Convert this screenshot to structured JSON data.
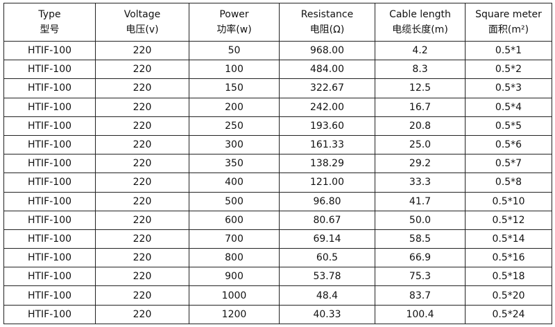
{
  "table": {
    "headers": [
      [
        "Type",
        "型号"
      ],
      [
        "Voltage",
        "电压(v)"
      ],
      [
        "Power",
        "功率(w)"
      ],
      [
        "Resistance",
        "电阻(Ω)"
      ],
      [
        "Cable length",
        "电缆长度(m)"
      ],
      [
        "Square meter",
        "面积(m²)"
      ]
    ],
    "rows": [
      [
        "HTIF-100",
        "220",
        "50",
        "968.00",
        "4.2",
        "0.5*1"
      ],
      [
        "HTIF-100",
        "220",
        "100",
        "484.00",
        "8.3",
        "0.5*2"
      ],
      [
        "HTIF-100",
        "220",
        "150",
        "322.67",
        "12.5",
        "0.5*3"
      ],
      [
        "HTIF-100",
        "220",
        "200",
        "242.00",
        "16.7",
        "0.5*4"
      ],
      [
        "HTIF-100",
        "220",
        "250",
        "193.60",
        "20.8",
        "0.5*5"
      ],
      [
        "HTIF-100",
        "220",
        "300",
        "161.33",
        "25.0",
        "0.5*6"
      ],
      [
        "HTIF-100",
        "220",
        "350",
        "138.29",
        "29.2",
        "0.5*7"
      ],
      [
        "HTIF-100",
        "220",
        "400",
        "121.00",
        "33.3",
        "0.5*8"
      ],
      [
        "HTIF-100",
        "220",
        "500",
        "96.80",
        "41.7",
        "0.5*10"
      ],
      [
        "HTIF-100",
        "220",
        "600",
        "80.67",
        "50.0",
        "0.5*12"
      ],
      [
        "HTIF-100",
        "220",
        "700",
        "69.14",
        "58.5",
        "0.5*14"
      ],
      [
        "HTIF-100",
        "220",
        "800",
        "60.5",
        "66.9",
        "0.5*16"
      ],
      [
        "HTIF-100",
        "220",
        "900",
        "53.78",
        "75.3",
        "0.5*18"
      ],
      [
        "HTIF-100",
        "220",
        "1000",
        "48.4",
        "83.7",
        "0.5*20"
      ],
      [
        "HTIF-100",
        "220",
        "1200",
        "40.33",
        "100.4",
        "0.5*24"
      ]
    ]
  }
}
